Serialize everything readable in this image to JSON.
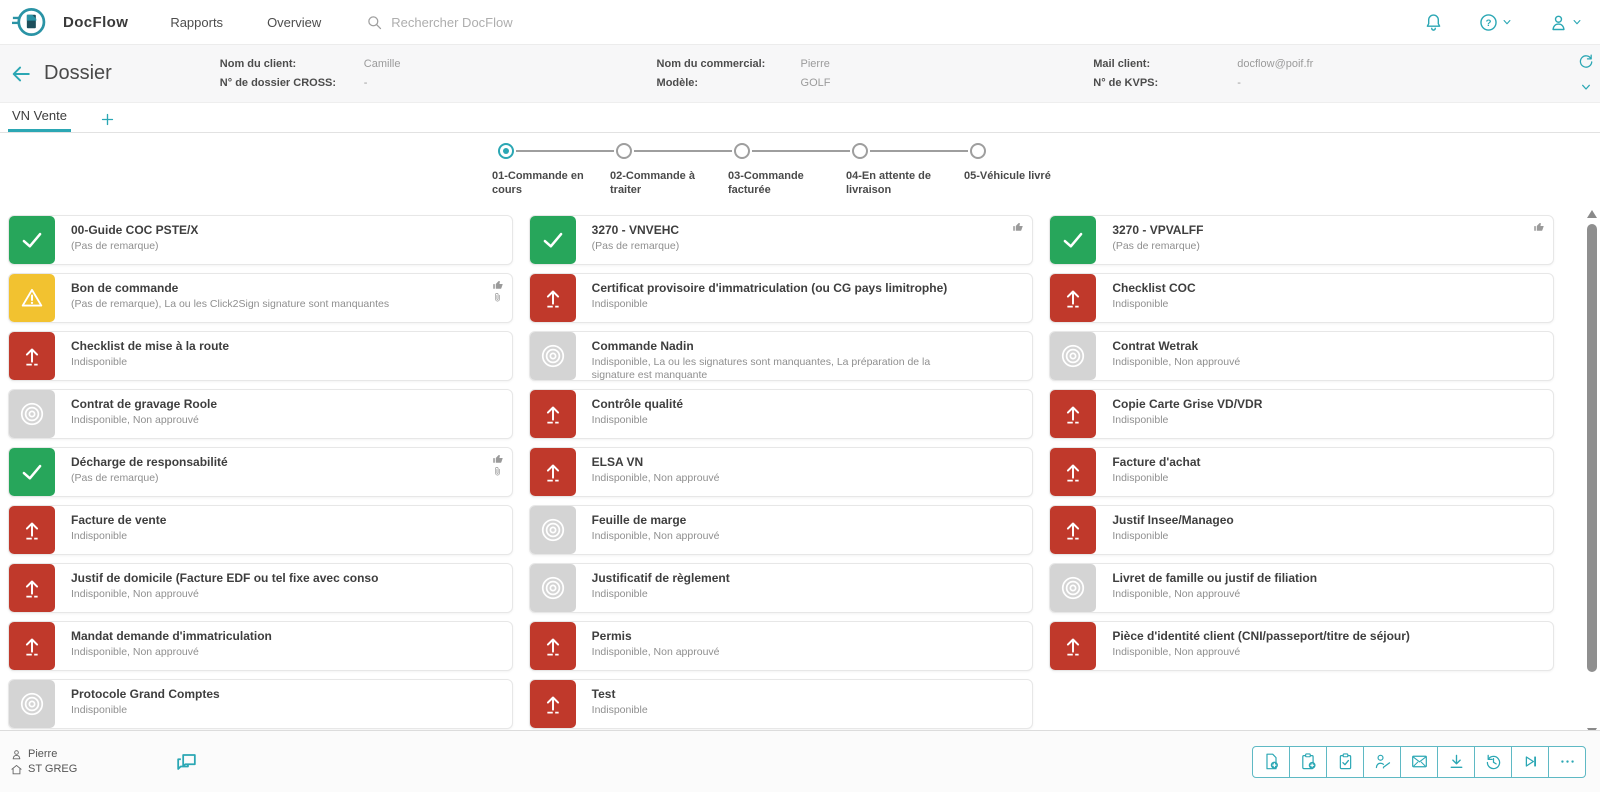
{
  "colors": {
    "accent": "#2ba7b4",
    "success": "#27a65b",
    "warning": "#f2c230",
    "missing": "#c0392b",
    "disabled": "#d4d4d4"
  },
  "navbar": {
    "brand": "DocFlow",
    "links": [
      {
        "label": "Rapports"
      },
      {
        "label": "Overview"
      }
    ],
    "search_placeholder": "Rechercher DocFlow",
    "icons": [
      "bell-icon",
      "help-icon",
      "user-icon"
    ]
  },
  "header": {
    "title": "Dossier",
    "field_groups": [
      [
        {
          "label": "Nom du client:",
          "value": "Camille"
        },
        {
          "label": "N° de dossier CROSS:",
          "value": "-"
        }
      ],
      [
        {
          "label": "Nom du commercial:",
          "value": "Pierre"
        },
        {
          "label": "Modèle:",
          "value": "GOLF"
        }
      ],
      [
        {
          "label": "Mail client:",
          "value": "docflow@poif.fr"
        },
        {
          "label": "N° de KVPS:",
          "value": "-"
        }
      ]
    ]
  },
  "tabs": {
    "active_label": "VN Vente",
    "add_label": "+"
  },
  "stepper": {
    "steps": [
      {
        "label": "01-Commande en cours",
        "active": true
      },
      {
        "label": "02-Commande à traiter",
        "active": false
      },
      {
        "label": "03-Commande facturée",
        "active": false
      },
      {
        "label": "04-En attente de livraison",
        "active": false
      },
      {
        "label": "05-Véhicule livré",
        "active": false
      }
    ]
  },
  "documents": {
    "columns": [
      [
        {
          "status": "success",
          "title": "00-Guide COC PSTE/X",
          "subtitle": "(Pas de remarque)",
          "badges": []
        },
        {
          "status": "warning",
          "title": "Bon de commande",
          "subtitle": "(Pas de remarque), La ou les Click2Sign signature sont manquantes",
          "badges": [
            "thumb",
            "clip"
          ]
        },
        {
          "status": "missing",
          "title": "Checklist de mise à la route",
          "subtitle": "Indisponible",
          "badges": []
        },
        {
          "status": "disabled",
          "title": "Contrat de gravage Roole",
          "subtitle": "Indisponible, Non approuvé",
          "badges": []
        },
        {
          "status": "success",
          "title": "Décharge de responsabilité",
          "subtitle": "(Pas de remarque)",
          "badges": [
            "thumb",
            "clip"
          ]
        },
        {
          "status": "missing",
          "title": "Facture de vente",
          "subtitle": "Indisponible",
          "badges": []
        },
        {
          "status": "missing",
          "title": "Justif de domicile (Facture EDF ou tel fixe avec conso",
          "subtitle": "Indisponible, Non approuvé",
          "badges": []
        },
        {
          "status": "missing",
          "title": "Mandat demande d'immatriculation",
          "subtitle": "Indisponible, Non approuvé",
          "badges": []
        },
        {
          "status": "disabled",
          "title": "Protocole Grand Comptes",
          "subtitle": "Indisponible",
          "badges": []
        }
      ],
      [
        {
          "status": "success",
          "title": "3270 - VNVEHC",
          "subtitle": "(Pas de remarque)",
          "badges": [
            "thumb"
          ]
        },
        {
          "status": "missing",
          "title": "Certificat provisoire d'immatriculation (ou CG pays limitrophe)",
          "subtitle": "Indisponible",
          "badges": []
        },
        {
          "status": "disabled",
          "title": "Commande Nadin",
          "subtitle": "Indisponible, La ou les signatures sont manquantes, La préparation de la signature est manquante",
          "badges": []
        },
        {
          "status": "missing",
          "title": "Contrôle qualité",
          "subtitle": "Indisponible",
          "badges": []
        },
        {
          "status": "missing",
          "title": "ELSA VN",
          "subtitle": "Indisponible, Non approuvé",
          "badges": []
        },
        {
          "status": "disabled",
          "title": "Feuille de marge",
          "subtitle": "Indisponible, Non approuvé",
          "badges": []
        },
        {
          "status": "disabled",
          "title": "Justificatif de règlement",
          "subtitle": "Indisponible",
          "badges": []
        },
        {
          "status": "missing",
          "title": "Permis",
          "subtitle": "Indisponible, Non approuvé",
          "badges": []
        },
        {
          "status": "missing",
          "title": "Test",
          "subtitle": "Indisponible",
          "badges": []
        }
      ],
      [
        {
          "status": "success",
          "title": "3270 - VPVALFF",
          "subtitle": "(Pas de remarque)",
          "badges": [
            "thumb"
          ]
        },
        {
          "status": "missing",
          "title": "Checklist COC",
          "subtitle": "Indisponible",
          "badges": []
        },
        {
          "status": "disabled",
          "title": "Contrat Wetrak",
          "subtitle": "Indisponible, Non approuvé",
          "badges": []
        },
        {
          "status": "missing",
          "title": "Copie Carte Grise VD/VDR",
          "subtitle": "Indisponible",
          "badges": []
        },
        {
          "status": "missing",
          "title": "Facture d'achat",
          "subtitle": "Indisponible",
          "badges": []
        },
        {
          "status": "missing",
          "title": "Justif Insee/Manageo",
          "subtitle": "Indisponible",
          "badges": []
        },
        {
          "status": "disabled",
          "title": "Livret de famille ou justif de filiation",
          "subtitle": "Indisponible, Non approuvé",
          "badges": []
        },
        {
          "status": "missing",
          "title": "Pièce d'identité client (CNI/passeport/titre de séjour)",
          "subtitle": "Indisponible, Non approuvé",
          "badges": []
        }
      ]
    ]
  },
  "footer": {
    "user": "Pierre",
    "site": "ST GREG",
    "actions": [
      {
        "name": "add-document",
        "icon": "file-add-icon"
      },
      {
        "name": "add-task",
        "icon": "clipboard-add-icon"
      },
      {
        "name": "checklist",
        "icon": "clipboard-check-icon"
      },
      {
        "name": "signature",
        "icon": "user-sign-icon"
      },
      {
        "name": "mail",
        "icon": "mail-icon"
      },
      {
        "name": "download",
        "icon": "download-icon"
      },
      {
        "name": "history",
        "icon": "history-icon"
      },
      {
        "name": "skip-step",
        "icon": "skip-end-icon"
      },
      {
        "name": "more-actions",
        "icon": "more-icon"
      }
    ]
  }
}
